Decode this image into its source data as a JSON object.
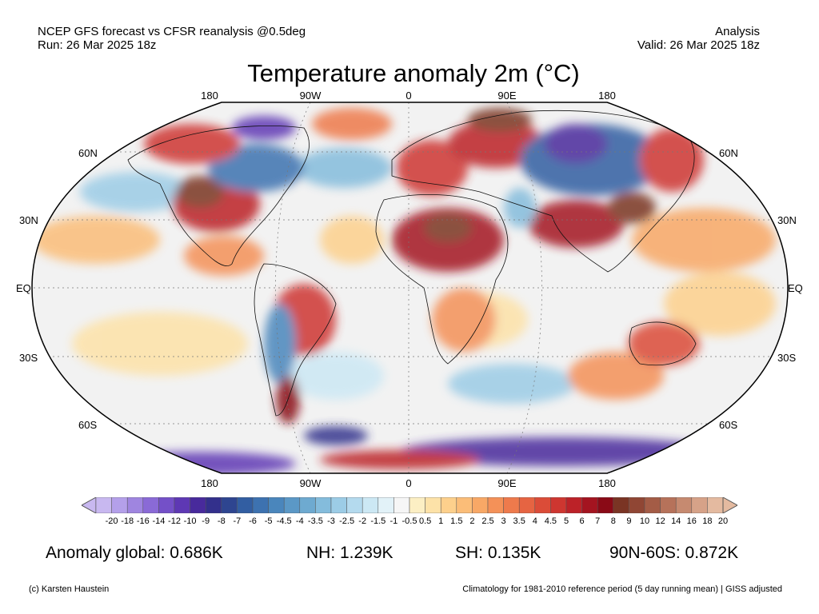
{
  "header": {
    "left_line1": "NCEP GFS forecast vs CFSR reanalysis @0.5deg",
    "left_line2": "Run: 26 Mar 2025 18z",
    "right_line1": "Analysis",
    "right_line2": "Valid: 26 Mar 2025 18z"
  },
  "title": "Temperature anomaly 2m (°C)",
  "map": {
    "projection": "Robinson",
    "lon_labels_top": [
      "180",
      "90W",
      "0",
      "90E",
      "180"
    ],
    "lon_labels_bottom": [
      "180",
      "90W",
      "0",
      "90E",
      "180"
    ],
    "lat_labels": [
      "60N",
      "30N",
      "EQ",
      "30S",
      "60S"
    ],
    "ocean_color": "#f2f2f2",
    "warm_color": "#d23a22",
    "cold_color": "#3a5fb0"
  },
  "colorbar": {
    "labels": [
      "-20",
      "-18",
      "-16",
      "-14",
      "-12",
      "-10",
      "-9",
      "-8",
      "-7",
      "-6",
      "-5",
      "-4.5",
      "-4",
      "-3.5",
      "-3",
      "-2.5",
      "-2",
      "-1.5",
      "-1",
      "-0.5",
      "0.5",
      "1",
      "1.5",
      "2",
      "2.5",
      "3",
      "3.5",
      "4",
      "4.5",
      "5",
      "6",
      "7",
      "8",
      "9",
      "10",
      "12",
      "14",
      "16",
      "18",
      "20"
    ],
    "colors": [
      "#c8b8f0",
      "#b4a0ea",
      "#9f85e0",
      "#8a6ad6",
      "#7450c8",
      "#5e38b4",
      "#482a9c",
      "#33308c",
      "#2e4590",
      "#325ea2",
      "#3d72b0",
      "#4a86bc",
      "#5b98c6",
      "#6eaad0",
      "#84bcdc",
      "#9ccce6",
      "#b4daee",
      "#cce8f4",
      "#e2f2f8",
      "#f6f6f6",
      "#fcefc4",
      "#fde2a8",
      "#fdd08c",
      "#fbbd78",
      "#f8a866",
      "#f49158",
      "#ee7a4c",
      "#e66442",
      "#db4c38",
      "#ce3630",
      "#bc2228",
      "#a41420",
      "#8a0a16",
      "#7a3424",
      "#904634",
      "#a45c46",
      "#b6725a",
      "#c68a70",
      "#d6a288",
      "#e4baa0"
    ]
  },
  "stats": {
    "global": "Anomaly global: 0.686K",
    "nh": "NH: 1.239K",
    "sh": "SH: 0.135K",
    "arctic": "90N-60S: 0.872K"
  },
  "footer": {
    "credit": "(c) Karsten Haustein",
    "note": "Climatology for 1981-2010 reference period (5 day running mean) | GISS adjusted"
  }
}
